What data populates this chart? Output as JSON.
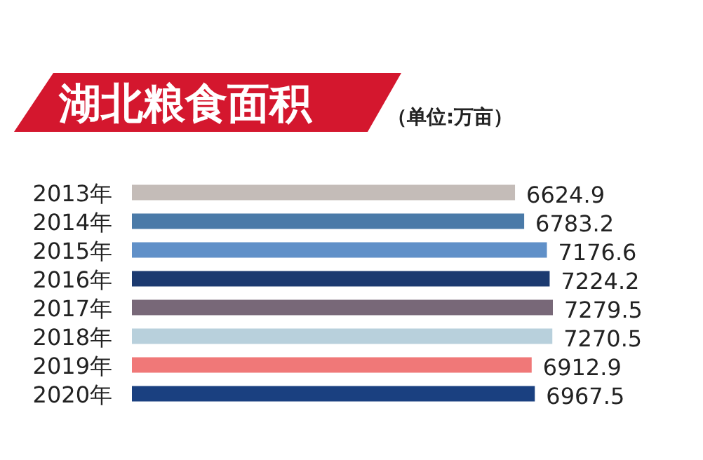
{
  "chart_data": {
    "type": "bar",
    "orientation": "horizontal",
    "title": "湖北粮食面积",
    "subtitle": "（单位:万亩）",
    "categories": [
      "2013年",
      "2014年",
      "2015年",
      "2016年",
      "2017年",
      "2018年",
      "2019年",
      "2020年"
    ],
    "values": [
      6624.9,
      6783.2,
      7176.6,
      7224.2,
      7279.5,
      7270.5,
      6912.9,
      6967.5
    ],
    "colors": [
      "#c4bcb8",
      "#4a7aa8",
      "#6090c8",
      "#1c3a70",
      "#786878",
      "#b8d0dc",
      "#f07878",
      "#1a4080"
    ],
    "data_labels": true
  }
}
